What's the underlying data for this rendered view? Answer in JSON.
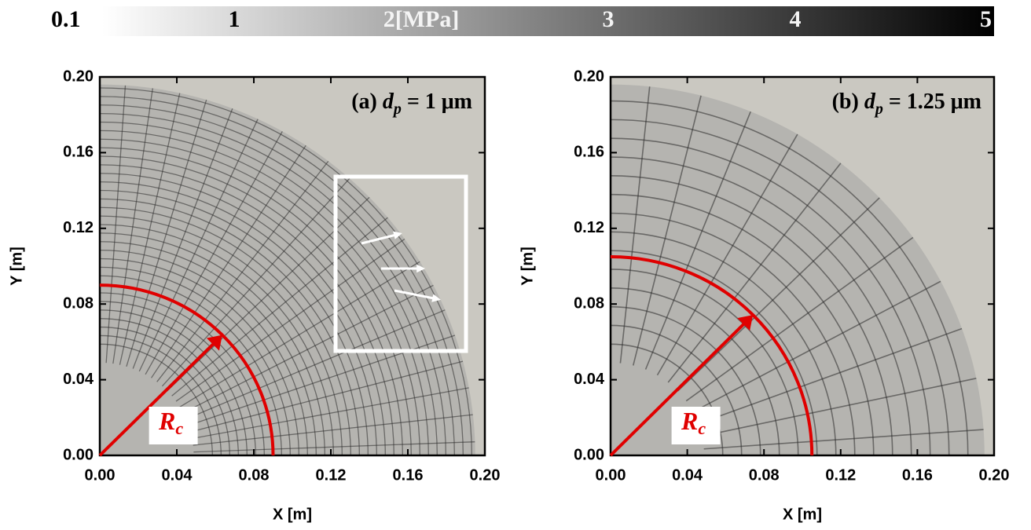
{
  "colorbar": {
    "colors": [
      "#ffffff",
      "#000000"
    ],
    "lim": [
      0,
      5
    ],
    "ticks": [
      0.1,
      1,
      {
        "value": 2,
        "label": "2[MPa]"
      },
      3,
      4,
      5
    ]
  },
  "chart_data": [
    {
      "type": "field",
      "title": {
        "prefix": "(a) ",
        "symbol": "d",
        "sub": "p",
        "rest": " = 1 μm"
      },
      "xlabel": "X [m]",
      "ylabel": "Y [m]",
      "xlim": [
        0,
        0.2
      ],
      "ylim": [
        0,
        0.2
      ],
      "xticks": [
        {
          "value": 0,
          "label": "0.00"
        },
        0.04,
        0.08,
        0.12,
        0.16,
        {
          "value": 0.2,
          "label": "0.20"
        }
      ],
      "yticks": [
        {
          "value": 0,
          "label": "0.00"
        },
        0.04,
        0.08,
        0.12,
        0.16,
        {
          "value": 0.2,
          "label": "0.20"
        }
      ],
      "critical_radius": 0.09,
      "radius_label": {
        "symbol": "R",
        "sub": "c"
      }
    },
    {
      "type": "field",
      "title": {
        "prefix": "(b) ",
        "symbol": "d",
        "sub": "p",
        "rest": " = 1.25 μm"
      },
      "xlabel": "X [m]",
      "ylabel": "Y [m]",
      "xlim": [
        0,
        0.2
      ],
      "ylim": [
        0,
        0.2
      ],
      "xticks": [
        {
          "value": 0,
          "label": "0.00"
        },
        0.04,
        0.08,
        0.12,
        0.16,
        {
          "value": 0.2,
          "label": "0.20"
        }
      ],
      "yticks": [
        {
          "value": 0,
          "label": "0.00"
        },
        0.04,
        0.08,
        0.12,
        0.16,
        {
          "value": 0.2,
          "label": "0.20"
        }
      ],
      "critical_radius": 0.105,
      "radius_label": {
        "symbol": "R",
        "sub": "c"
      }
    }
  ]
}
